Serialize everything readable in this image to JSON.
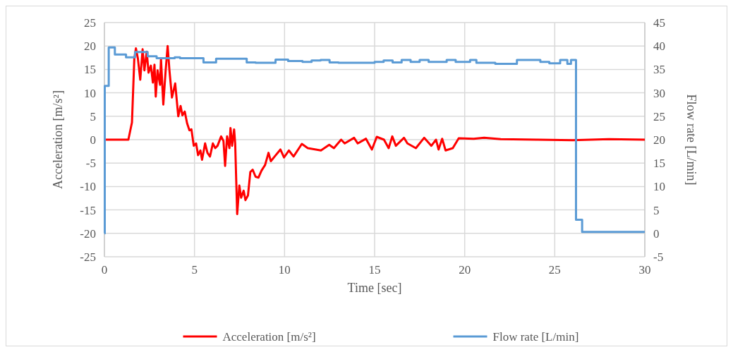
{
  "chart_data": {
    "type": "line",
    "xlabel": "Time [sec]",
    "ylabel": "Acceleration [m/s²]",
    "y2label": "Flow rate [L/min]",
    "xlim": [
      0,
      30
    ],
    "xticks": [
      0,
      5,
      10,
      15,
      20,
      25,
      30
    ],
    "ylim": [
      -25,
      25
    ],
    "yticks": [
      -25,
      -20,
      -15,
      -10,
      -5,
      0,
      5,
      10,
      15,
      20,
      25
    ],
    "y2lim": [
      -5,
      45
    ],
    "y2ticks": [
      -5,
      0,
      5,
      10,
      15,
      20,
      25,
      30,
      35,
      40,
      45
    ],
    "grid": true,
    "legend": "bottom",
    "line_style": "solid",
    "series": [
      {
        "name": "Acceleration [m/s²]",
        "color": "#ff0000",
        "x": [
          0.08,
          1.33,
          1.53,
          1.66,
          1.75,
          1.86,
          1.99,
          2.12,
          2.22,
          2.35,
          2.45,
          2.58,
          2.69,
          2.78,
          2.85,
          2.95,
          3.09,
          3.14,
          3.27,
          3.4,
          3.51,
          3.61,
          3.75,
          3.93,
          4.1,
          4.23,
          4.33,
          4.46,
          4.59,
          4.72,
          4.83,
          4.96,
          5.09,
          5.2,
          5.33,
          5.42,
          5.59,
          5.72,
          5.86,
          6.02,
          6.15,
          6.28,
          6.48,
          6.61,
          6.7,
          6.81,
          6.94,
          7.0,
          7.09,
          7.2,
          7.26,
          7.37,
          7.49,
          7.59,
          7.73,
          7.83,
          7.97,
          8.1,
          8.23,
          8.39,
          8.55,
          8.72,
          8.92,
          9.11,
          9.24,
          9.45,
          9.77,
          9.97,
          10.24,
          10.5,
          10.96,
          11.29,
          12.02,
          12.48,
          12.74,
          13.14,
          13.34,
          13.86,
          14.06,
          14.52,
          14.85,
          15.12,
          15.52,
          15.78,
          15.98,
          16.18,
          16.63,
          16.82,
          17.29,
          17.75,
          18.15,
          18.41,
          18.55,
          18.75,
          18.94,
          19.34,
          19.67,
          20.5,
          21.08,
          22,
          24,
          26,
          28,
          30
        ],
        "values": [
          0,
          0,
          3.7,
          17.3,
          19.5,
          17.3,
          12.8,
          19.3,
          14.8,
          18.8,
          14.3,
          15.8,
          12.2,
          16,
          9.2,
          14.8,
          11.7,
          17.3,
          7.5,
          14.8,
          20,
          14.8,
          9,
          12,
          5,
          7.2,
          5.2,
          6,
          3.5,
          2,
          2.2,
          -1.3,
          -0.8,
          -3.3,
          -2.3,
          -4.3,
          -0.8,
          -2.8,
          -3.6,
          -0.8,
          -1.8,
          -1.3,
          0.7,
          -0.3,
          -5.6,
          0.7,
          -1.8,
          2.5,
          -1.3,
          2.2,
          -0.8,
          -15.9,
          -9.8,
          -12.4,
          -10.9,
          -12.9,
          -11.9,
          -6.9,
          -6.4,
          -7.9,
          -8.1,
          -6.6,
          -5.4,
          -2.8,
          -4.6,
          -3.6,
          -2.1,
          -3.8,
          -2.3,
          -3.6,
          -0.9,
          -1.8,
          -2.3,
          -1.1,
          -1.8,
          0,
          -0.8,
          0.4,
          -0.8,
          0.2,
          -2.1,
          0.6,
          0,
          -1.8,
          0.7,
          -1.3,
          0.4,
          -0.8,
          -1.8,
          0.4,
          -1.3,
          0,
          -2.1,
          0.2,
          -2.3,
          -1.8,
          0.3,
          0.2,
          0.4,
          0.1,
          0,
          -0.1,
          0.1,
          0
        ]
      },
      {
        "name": "Flow rate [L/min]",
        "type": "step",
        "axis": "y2",
        "color": "#5b9bd5",
        "x": [
          0,
          0.02,
          0.24,
          0.58,
          1.2,
          1.7,
          2.4,
          2.9,
          3.9,
          4.2,
          5.5,
          6.2,
          7.9,
          8.4,
          9.5,
          10.2,
          10.5,
          11,
          11.5,
          12,
          12.5,
          13,
          14,
          15,
          15.5,
          16,
          16.5,
          17,
          17.5,
          18,
          19,
          19.5,
          20.3,
          20.65,
          21.7,
          22.9,
          24.2,
          24.7,
          25.3,
          25.7,
          25.9,
          26.18,
          26.52,
          30
        ],
        "values": [
          0,
          31.5,
          39.7,
          38.2,
          37.6,
          38.7,
          37.8,
          37.4,
          37.6,
          37.4,
          36.5,
          37.3,
          36.5,
          36.4,
          37.1,
          36.8,
          36.8,
          36.6,
          36.9,
          37.0,
          36.5,
          36.4,
          36.4,
          36.6,
          36.9,
          36.5,
          37.0,
          36.6,
          37.0,
          36.6,
          37.0,
          36.6,
          37.0,
          36.4,
          36.2,
          37.0,
          36.6,
          36.3,
          37.0,
          36.2,
          37.0,
          2.9,
          0.3,
          0.3
        ]
      }
    ]
  }
}
